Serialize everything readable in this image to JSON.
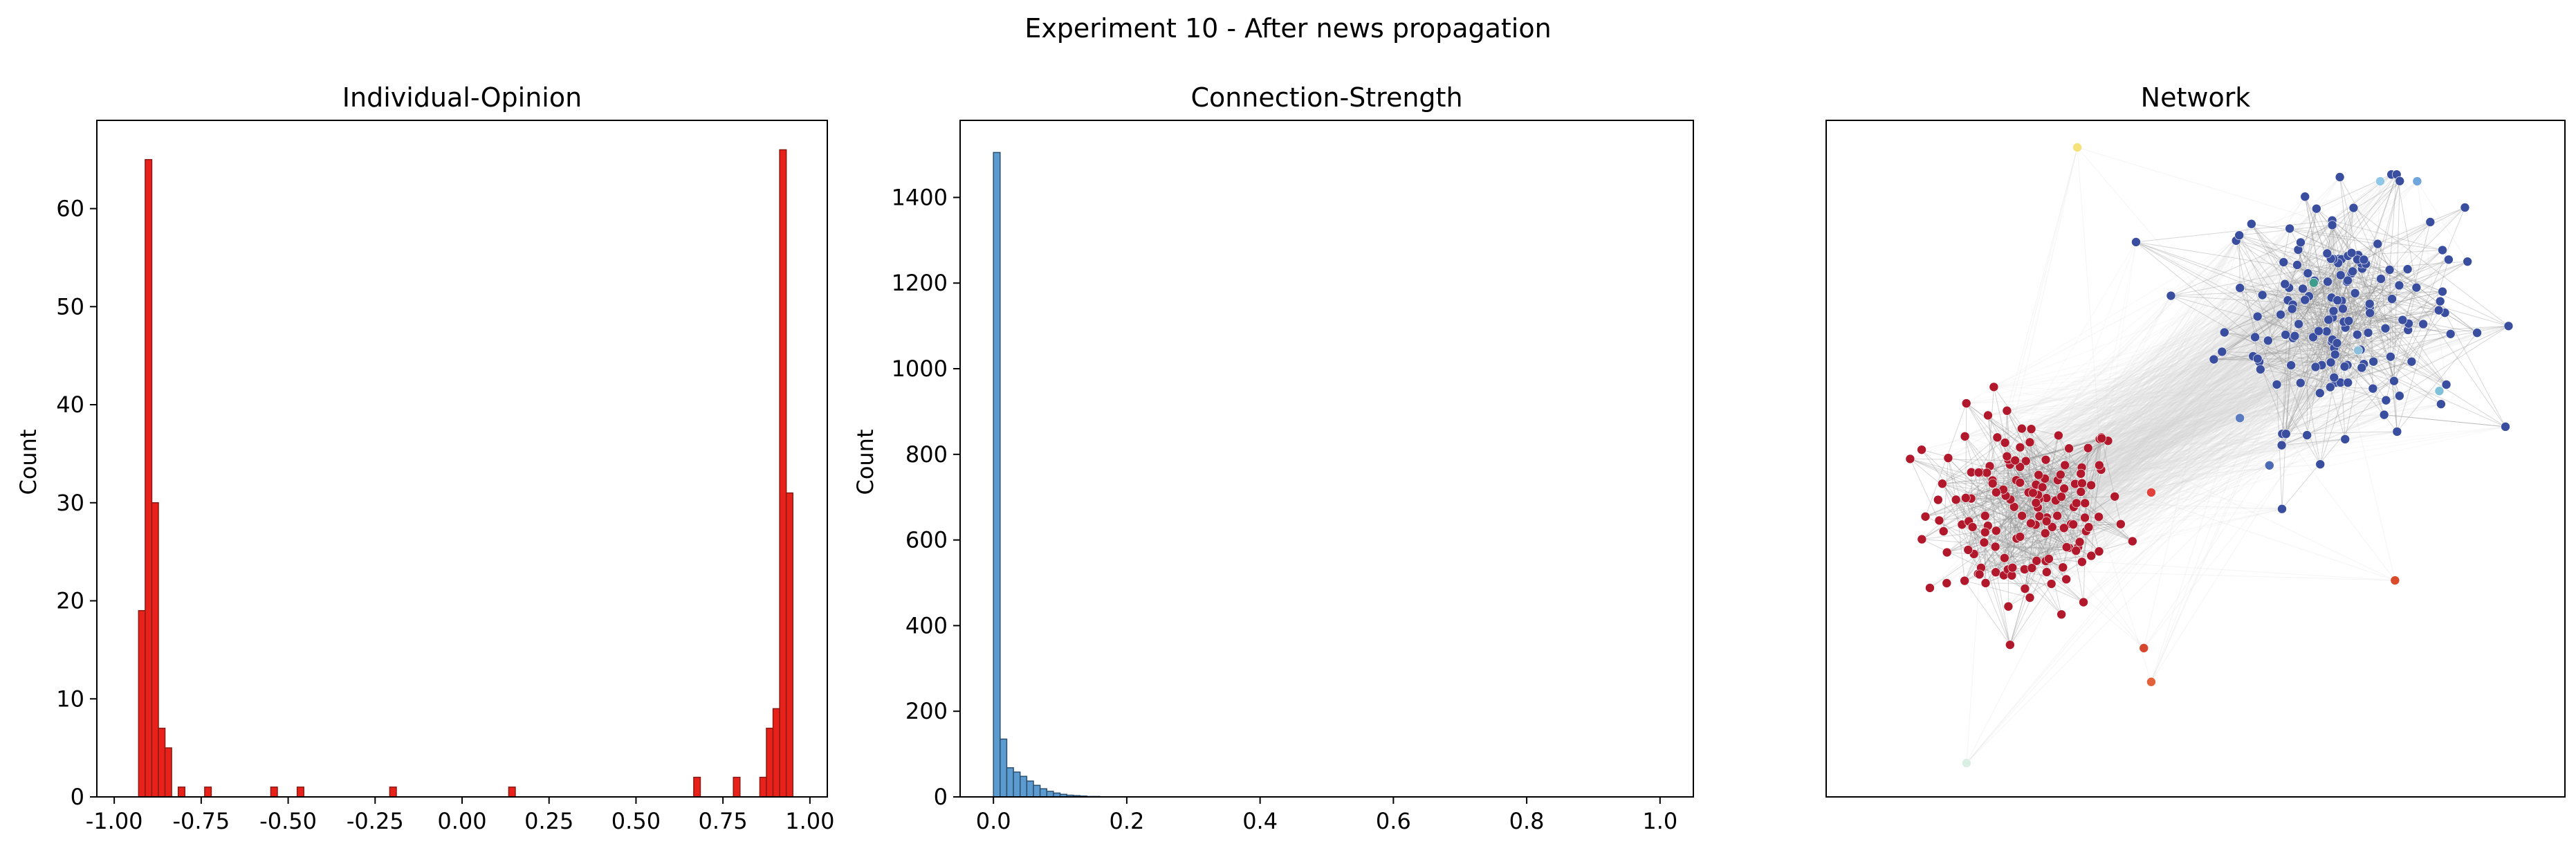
{
  "figure": {
    "title": "Experiment 10 - After news propagation"
  },
  "chart_data": [
    {
      "type": "bar",
      "title": "Individual-Opinion",
      "xlabel": "",
      "ylabel": "Count",
      "xlim": [
        -1.05,
        1.05
      ],
      "ylim": [
        0,
        69
      ],
      "xticks": [
        "-1.00",
        "-0.75",
        "-0.50",
        "-0.25",
        "0.00",
        "0.25",
        "0.50",
        "0.75",
        "1.00"
      ],
      "xtick_values": [
        -1.0,
        -0.75,
        -0.5,
        -0.25,
        0.0,
        0.25,
        0.5,
        0.75,
        1.0
      ],
      "yticks": [
        "0",
        "10",
        "20",
        "30",
        "40",
        "50",
        "60"
      ],
      "ytick_values": [
        0,
        10,
        20,
        30,
        40,
        50,
        60
      ],
      "bin_width": 0.019,
      "color": "#e8221b",
      "edge_color": "#8b1a14",
      "bins": [
        {
          "x": -0.93,
          "value": 19
        },
        {
          "x": -0.911,
          "value": 65
        },
        {
          "x": -0.892,
          "value": 30
        },
        {
          "x": -0.873,
          "value": 7
        },
        {
          "x": -0.854,
          "value": 5
        },
        {
          "x": -0.816,
          "value": 1
        },
        {
          "x": -0.74,
          "value": 1
        },
        {
          "x": -0.55,
          "value": 1
        },
        {
          "x": -0.474,
          "value": 1
        },
        {
          "x": -0.208,
          "value": 1
        },
        {
          "x": 0.134,
          "value": 1
        },
        {
          "x": 0.666,
          "value": 2
        },
        {
          "x": 0.78,
          "value": 2
        },
        {
          "x": 0.856,
          "value": 2
        },
        {
          "x": 0.875,
          "value": 7
        },
        {
          "x": 0.894,
          "value": 9
        },
        {
          "x": 0.913,
          "value": 66
        },
        {
          "x": 0.932,
          "value": 31
        }
      ]
    },
    {
      "type": "bar",
      "title": "Connection-Strength",
      "xlabel": "",
      "ylabel": "Count",
      "xlim": [
        -0.05,
        1.05
      ],
      "ylim": [
        0,
        1580
      ],
      "xticks": [
        "0.0",
        "0.2",
        "0.4",
        "0.6",
        "0.8",
        "1.0"
      ],
      "xtick_values": [
        0.0,
        0.2,
        0.4,
        0.6,
        0.8,
        1.0
      ],
      "yticks": [
        "0",
        "200",
        "400",
        "600",
        "800",
        "1000",
        "1200",
        "1400"
      ],
      "ytick_values": [
        0,
        200,
        400,
        600,
        800,
        1000,
        1200,
        1400
      ],
      "bin_width": 0.01,
      "color": "#5b9bd0",
      "edge_color": "#2c4f6e",
      "bins": [
        {
          "x": 0.0,
          "value": 1505
        },
        {
          "x": 0.01,
          "value": 135
        },
        {
          "x": 0.02,
          "value": 68
        },
        {
          "x": 0.03,
          "value": 58
        },
        {
          "x": 0.04,
          "value": 48
        },
        {
          "x": 0.05,
          "value": 37
        },
        {
          "x": 0.06,
          "value": 27
        },
        {
          "x": 0.07,
          "value": 19
        },
        {
          "x": 0.08,
          "value": 13
        },
        {
          "x": 0.09,
          "value": 9
        },
        {
          "x": 0.1,
          "value": 6
        },
        {
          "x": 0.11,
          "value": 4
        },
        {
          "x": 0.12,
          "value": 3
        },
        {
          "x": 0.13,
          "value": 2
        },
        {
          "x": 0.14,
          "value": 1
        },
        {
          "x": 0.15,
          "value": 1
        }
      ]
    },
    {
      "type": "scatter",
      "title": "Network",
      "xlabel": "",
      "ylabel": "",
      "axes_visible": false,
      "note_colors": {
        "red_cluster": "#b2182b",
        "blue_cluster": "#3a4ea0",
        "edge": "#9a9a9a"
      },
      "clusters": [
        {
          "name_hidden": "left",
          "color": "#b2182b",
          "count": 150,
          "center": [
            0.27,
            0.42
          ],
          "spread": [
            0.11,
            0.12
          ]
        },
        {
          "name_hidden": "right",
          "color": "#3a4ea0",
          "count": 150,
          "center": [
            0.7,
            0.72
          ],
          "spread": [
            0.13,
            0.14
          ]
        }
      ],
      "outliers": [
        {
          "x": 0.34,
          "y": 0.96,
          "color": "#f5e27a"
        },
        {
          "x": 0.75,
          "y": 0.91,
          "color": "#8fc7e8"
        },
        {
          "x": 0.8,
          "y": 0.91,
          "color": "#6fa6db"
        },
        {
          "x": 0.19,
          "y": 0.05,
          "color": "#d9efe3"
        },
        {
          "x": 0.44,
          "y": 0.17,
          "color": "#e2623a"
        },
        {
          "x": 0.43,
          "y": 0.22,
          "color": "#d7462f"
        },
        {
          "x": 0.44,
          "y": 0.45,
          "color": "#e0413a"
        },
        {
          "x": 0.77,
          "y": 0.32,
          "color": "#d94b2b"
        },
        {
          "x": 0.56,
          "y": 0.56,
          "color": "#5a7bbf"
        },
        {
          "x": 0.6,
          "y": 0.49,
          "color": "#4a6ab5"
        },
        {
          "x": 0.66,
          "y": 0.76,
          "color": "#3e9c8a"
        },
        {
          "x": 0.83,
          "y": 0.6,
          "color": "#7fc1d9"
        },
        {
          "x": 0.72,
          "y": 0.66,
          "color": "#8bbfdc"
        }
      ]
    }
  ]
}
